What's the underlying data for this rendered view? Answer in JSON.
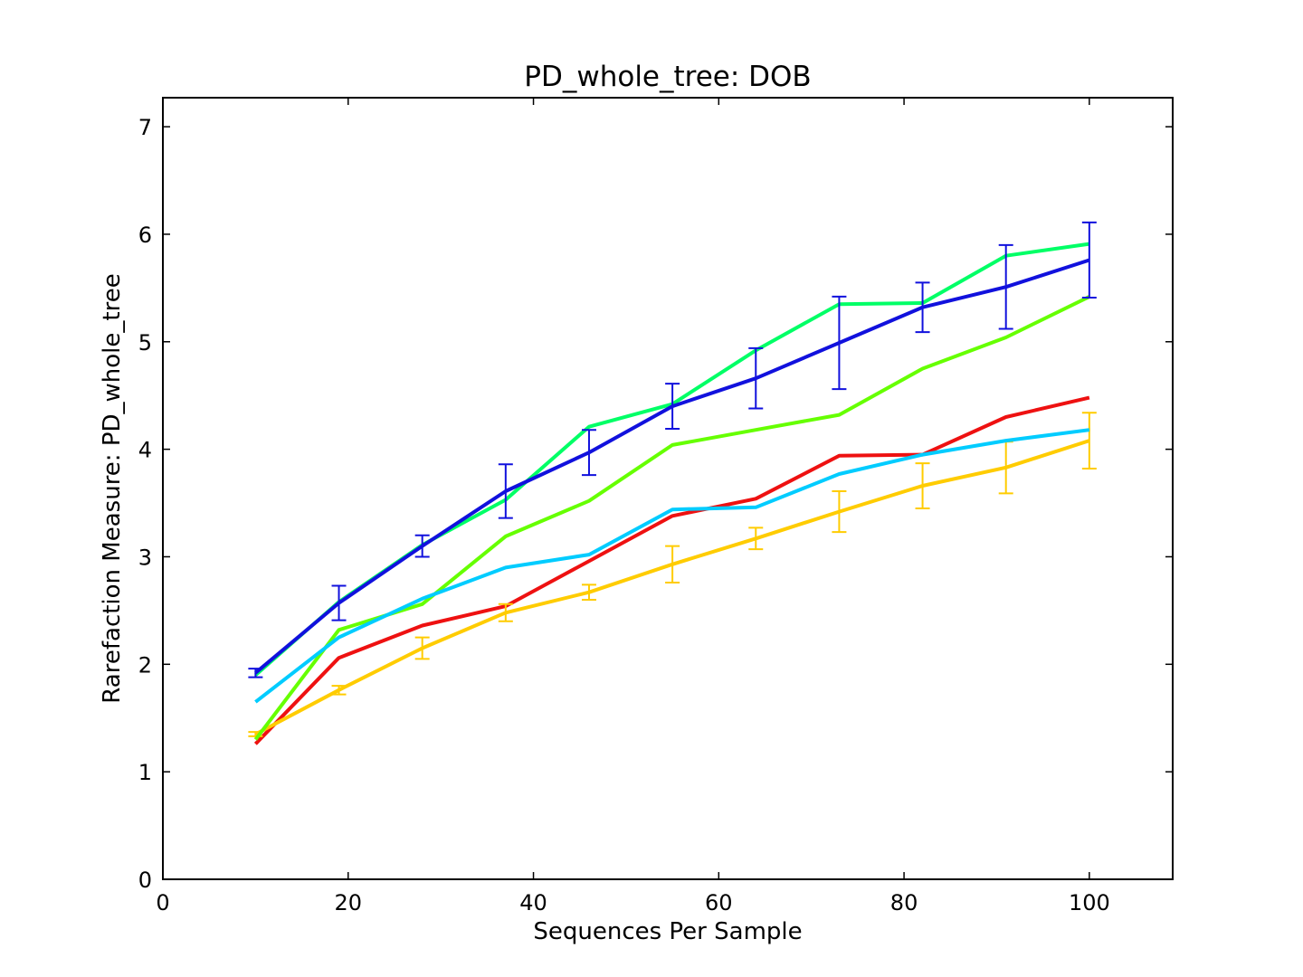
{
  "chart_data": {
    "type": "line",
    "title": "PD_whole_tree: DOB",
    "xlabel": "Sequences Per Sample",
    "ylabel": "Rarefaction Measure: PD_whole_tree",
    "xlim": [
      0,
      109
    ],
    "ylim": [
      0,
      7.27
    ],
    "xticks": [
      "0",
      "20",
      "40",
      "60",
      "80",
      "100"
    ],
    "yticks": [
      "0",
      "1",
      "2",
      "3",
      "4",
      "5",
      "6",
      "7"
    ],
    "grid": false,
    "x": [
      10,
      19,
      28,
      37,
      46,
      55,
      64,
      73,
      82,
      91,
      100
    ],
    "series": [
      {
        "color": "#ee1111",
        "values": [
          1.26,
          2.06,
          2.36,
          2.54,
          2.96,
          3.38,
          3.54,
          3.94,
          3.95,
          4.3,
          4.48
        ]
      },
      {
        "color": "#ffcc00",
        "values": [
          1.35,
          1.76,
          2.15,
          2.48,
          2.67,
          2.93,
          3.17,
          3.42,
          3.66,
          3.83,
          4.08
        ],
        "errors": [
          0.02,
          0.04,
          0.1,
          0.08,
          0.07,
          0.17,
          0.1,
          0.19,
          0.21,
          0.24,
          0.26
        ]
      },
      {
        "color": "#66ff00",
        "values": [
          1.3,
          2.32,
          2.56,
          3.19,
          3.52,
          4.04,
          4.18,
          4.32,
          4.75,
          5.04,
          5.42
        ]
      },
      {
        "color": "#00ccff",
        "values": [
          1.65,
          2.25,
          2.61,
          2.9,
          3.02,
          3.44,
          3.46,
          3.77,
          3.95,
          4.08,
          4.18
        ]
      },
      {
        "color": "#00ff66",
        "values": [
          1.9,
          2.58,
          3.11,
          3.53,
          4.21,
          4.42,
          4.92,
          5.35,
          5.36,
          5.8,
          5.91
        ]
      },
      {
        "color": "#1111dd",
        "values": [
          1.92,
          2.57,
          3.1,
          3.61,
          3.97,
          4.4,
          4.66,
          4.99,
          5.32,
          5.51,
          5.76
        ],
        "errors": [
          0.04,
          0.16,
          0.1,
          0.25,
          0.21,
          0.21,
          0.28,
          0.43,
          0.23,
          0.39,
          0.35
        ]
      }
    ]
  }
}
